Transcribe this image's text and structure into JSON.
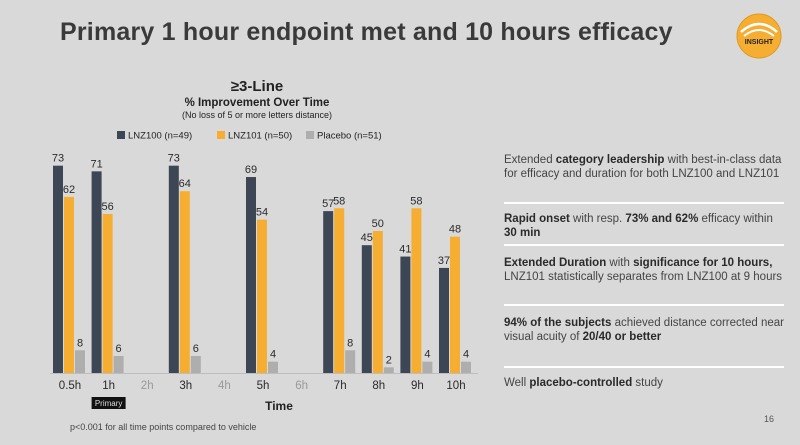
{
  "slide": {
    "title": "Primary 1 hour endpoint met and 10 hours efficacy",
    "logo_text": "INSIGHT",
    "footnote": "p<0.001 for all time points compared to vehicle",
    "page_number": "16"
  },
  "chart_data": {
    "type": "bar",
    "title": "≥3-Line",
    "subtitle": "% Improvement Over Time",
    "subsubtitle": "(No loss of 5 or more letters distance)",
    "xlabel": "Time",
    "ylabel": "",
    "ylim": [
      0,
      80
    ],
    "grid": false,
    "legend_position": "top",
    "categories": [
      "0.5h",
      "1h",
      "2h",
      "3h",
      "4h",
      "5h",
      "6h",
      "7h",
      "8h",
      "9h",
      "10h"
    ],
    "series": [
      {
        "name": "LNZ100 (n=49)",
        "color": "#3d4654",
        "values": [
          73,
          71,
          null,
          73,
          null,
          69,
          null,
          57,
          45,
          41,
          37
        ]
      },
      {
        "name": "LNZ101 (n=50)",
        "color": "#f5ae32",
        "values": [
          62,
          56,
          null,
          64,
          null,
          54,
          null,
          58,
          50,
          58,
          48
        ]
      },
      {
        "name": "Placebo (n=51)",
        "color": "#aeaeae",
        "values": [
          8,
          6,
          null,
          6,
          null,
          4,
          null,
          8,
          2,
          4,
          4
        ]
      }
    ],
    "active_categories": [
      "0.5h",
      "1h",
      "3h",
      "5h",
      "7h",
      "8h",
      "9h",
      "10h"
    ],
    "muted_category_color": "#999999",
    "primary_marker": {
      "category": "1h",
      "label": "Primary"
    }
  },
  "panel": [
    {
      "parts": [
        {
          "t": "Extended ",
          "b": false
        },
        {
          "t": "category leadership",
          "b": true
        },
        {
          "t": " with best-in-class data for efficacy and duration for both LNZ100 and LNZ101",
          "b": false
        }
      ]
    },
    {
      "parts": [
        {
          "t": "Rapid onset",
          "b": true
        },
        {
          "t": " with resp. ",
          "b": false
        },
        {
          "t": "73% and 62%",
          "b": true
        },
        {
          "t": " efficacy within ",
          "b": false
        },
        {
          "t": "30 min",
          "b": true
        }
      ]
    },
    {
      "parts": [
        {
          "t": "Extended Duration",
          "b": true
        },
        {
          "t": " with ",
          "b": false
        },
        {
          "t": "significance for 10 hours,",
          "b": true
        },
        {
          "t": " LNZ101 statistically separates from LNZ100 at 9 hours",
          "b": false
        }
      ]
    },
    {
      "parts": [
        {
          "t": "94% of the subjects",
          "b": true
        },
        {
          "t": " achieved distance corrected near visual acuity of ",
          "b": false
        },
        {
          "t": "20/40 or better",
          "b": true
        }
      ]
    },
    {
      "parts": [
        {
          "t": "Well ",
          "b": false
        },
        {
          "t": "placebo-controlled",
          "b": true
        },
        {
          "t": " study",
          "b": false
        }
      ]
    }
  ]
}
